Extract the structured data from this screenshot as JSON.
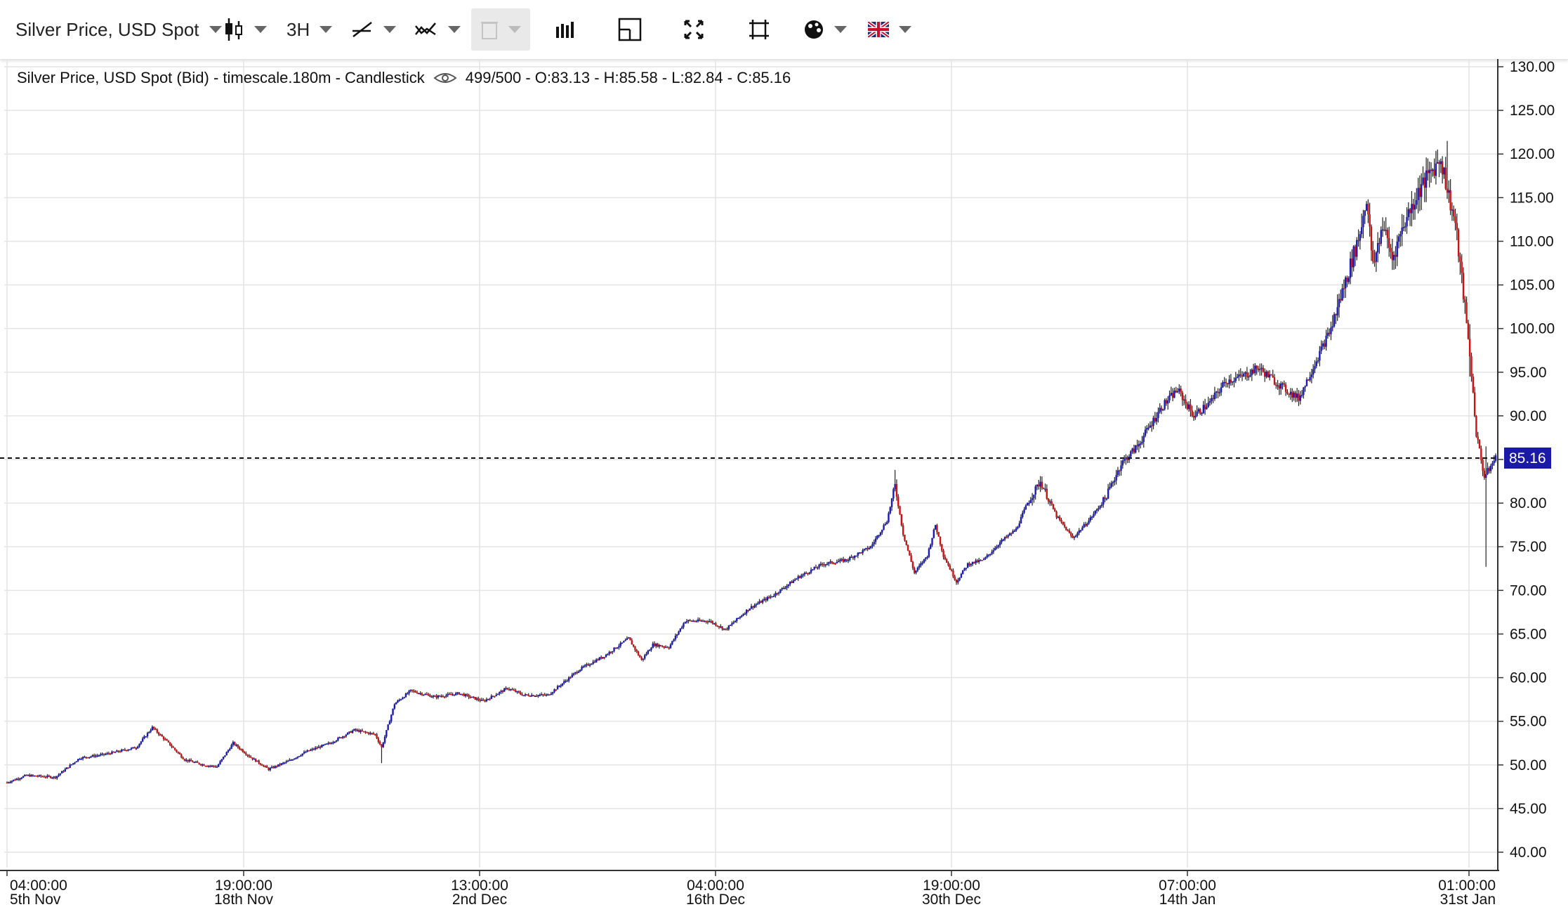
{
  "toolbar": {
    "instrument": "Silver Price, USD Spot",
    "timeframe": "3H",
    "icons": [
      "candlestick-icon",
      "drawing-line-icon",
      "indicator-icon",
      "trash-icon",
      "volume-bars-icon",
      "crosshair-icon",
      "fullscreen-icon",
      "fit-screen-icon",
      "theme-palette-icon",
      "uk-flag-icon"
    ]
  },
  "legend": {
    "title": "Silver Price, USD Spot (Bid) - timescale.180m - Candlestick",
    "stats": "499/500 - O:83.13 - H:85.58 - L:82.84 - C:85.16"
  },
  "colors": {
    "up": "#1a1ab8",
    "down": "#cc1111",
    "last_price_bg": "#1a1aa6",
    "grid": "#e4e4e4"
  },
  "chart_data": {
    "type": "candlestick",
    "title": "Silver Price, USD Spot (Bid) - timescale.180m - Candlestick",
    "last_price": 85.16,
    "last_price_label": "85.16",
    "ylim": [
      40,
      130
    ],
    "y_ticks": [
      "130.00",
      "125.00",
      "120.00",
      "115.00",
      "110.00",
      "105.00",
      "100.00",
      "95.00",
      "90.00",
      "85.00",
      "80.00",
      "75.00",
      "70.00",
      "65.00",
      "60.00",
      "55.00",
      "50.00",
      "45.00",
      "40.00"
    ],
    "x_ticks": [
      {
        "time": "04:00:00",
        "date": "5th Nov"
      },
      {
        "time": "19:00:00",
        "date": "18th Nov"
      },
      {
        "time": "13:00:00",
        "date": "2nd Dec"
      },
      {
        "time": "04:00:00",
        "date": "16th Dec"
      },
      {
        "time": "19:00:00",
        "date": "30th Dec"
      },
      {
        "time": "07:00:00",
        "date": "14th Jan"
      },
      {
        "time": "01:00:00",
        "date": "31st Jan"
      }
    ],
    "x_tick_candle_index": [
      0,
      100,
      200,
      300,
      400,
      500,
      600
    ],
    "close_path": [
      [
        0,
        48
      ],
      [
        12,
        48.8
      ],
      [
        30,
        48.6
      ],
      [
        45,
        50.8
      ],
      [
        60,
        51.2
      ],
      [
        80,
        52
      ],
      [
        90,
        54.3
      ],
      [
        100,
        52.5
      ],
      [
        110,
        50.6
      ],
      [
        122,
        50
      ],
      [
        130,
        49.8
      ],
      [
        140,
        52.5
      ],
      [
        150,
        51
      ],
      [
        162,
        49.5
      ],
      [
        175,
        50.5
      ],
      [
        185,
        51.5
      ],
      [
        200,
        52.5
      ],
      [
        215,
        54
      ],
      [
        228,
        53.5
      ],
      [
        232,
        52
      ],
      [
        240,
        57
      ],
      [
        250,
        58.5
      ],
      [
        265,
        57.8
      ],
      [
        280,
        58.2
      ],
      [
        295,
        57.3
      ],
      [
        310,
        58.8
      ],
      [
        320,
        58
      ],
      [
        335,
        58
      ],
      [
        345,
        59.5
      ],
      [
        355,
        61
      ],
      [
        370,
        62.5
      ],
      [
        385,
        64.5
      ],
      [
        393,
        62
      ],
      [
        400,
        63.8
      ],
      [
        410,
        63.5
      ],
      [
        420,
        66.5
      ],
      [
        435,
        66.5
      ],
      [
        445,
        65.5
      ],
      [
        460,
        68
      ],
      [
        475,
        69.5
      ],
      [
        490,
        71.5
      ],
      [
        505,
        73
      ],
      [
        520,
        73.5
      ],
      [
        535,
        75
      ],
      [
        545,
        78
      ],
      [
        550,
        82
      ],
      [
        555,
        76.5
      ],
      [
        562,
        72
      ],
      [
        570,
        74
      ],
      [
        575,
        77.5
      ],
      [
        580,
        74
      ],
      [
        588,
        71
      ],
      [
        595,
        73
      ],
      [
        605,
        73.5
      ],
      [
        615,
        75.5
      ],
      [
        625,
        77
      ],
      [
        632,
        80
      ],
      [
        640,
        82.5
      ],
      [
        650,
        78.5
      ],
      [
        660,
        76
      ],
      [
        670,
        78
      ],
      [
        680,
        80.5
      ],
      [
        690,
        84.5
      ],
      [
        700,
        86.5
      ],
      [
        715,
        91
      ],
      [
        725,
        93
      ],
      [
        735,
        90
      ],
      [
        745,
        91.5
      ],
      [
        755,
        94
      ],
      [
        765,
        94.5
      ],
      [
        775,
        95.5
      ],
      [
        785,
        94
      ],
      [
        792,
        93
      ],
      [
        800,
        92
      ],
      [
        810,
        96
      ],
      [
        820,
        100
      ],
      [
        830,
        106
      ],
      [
        838,
        111
      ],
      [
        842,
        115
      ],
      [
        846,
        107
      ],
      [
        852,
        112
      ],
      [
        858,
        108
      ],
      [
        865,
        112
      ],
      [
        875,
        116
      ],
      [
        882,
        118
      ],
      [
        888,
        119.5
      ],
      [
        892,
        116
      ],
      [
        897,
        112
      ],
      [
        902,
        104
      ],
      [
        906,
        97
      ],
      [
        910,
        88
      ],
      [
        915,
        83
      ],
      [
        922,
        85.16
      ]
    ],
    "close_path_note_units": "candle index, price in USD"
  }
}
